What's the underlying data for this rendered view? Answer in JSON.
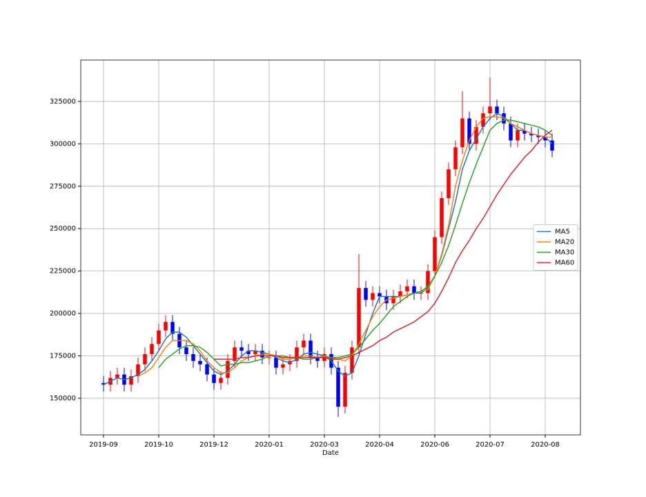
{
  "chart_data": {
    "type": "candlestick",
    "xlabel": "Date",
    "xlim": [
      -3.3,
      69.1
    ],
    "xticks": [
      {
        "value": 0,
        "label": "2019-09"
      },
      {
        "value": 8,
        "label": "2019-10"
      },
      {
        "value": 16,
        "label": "2019-12"
      },
      {
        "value": 24,
        "label": "2020-01"
      },
      {
        "value": 32,
        "label": "2020-03"
      },
      {
        "value": 40,
        "label": "2020-04"
      },
      {
        "value": 48,
        "label": "2020-06"
      },
      {
        "value": 56,
        "label": "2020-07"
      },
      {
        "value": 64,
        "label": "2020-08"
      }
    ],
    "ylim": [
      128400,
      349400
    ],
    "yticks": [
      150000,
      175000,
      200000,
      225000,
      250000,
      275000,
      300000,
      325000
    ],
    "grid": true,
    "legend": "center right",
    "up_color": "#ff0000",
    "down_color": "#0000ff",
    "open": [
      159000,
      158000,
      162000,
      164000,
      158000,
      163000,
      170000,
      176000,
      182000,
      190000,
      195000,
      188000,
      180000,
      176000,
      172000,
      170000,
      164000,
      159000,
      162000,
      172000,
      180000,
      178000,
      176000,
      178000,
      174000,
      174000,
      168000,
      170000,
      172000,
      180000,
      184000,
      174000,
      172000,
      176000,
      168000,
      145000,
      165000,
      180000,
      215000,
      208000,
      212000,
      210000,
      206000,
      210000,
      213000,
      216000,
      212000,
      212000,
      225000,
      245000,
      268000,
      285000,
      298000,
      315000,
      300000,
      310000,
      318000,
      322000,
      318000,
      312000,
      302000,
      308000,
      306000,
      305000,
      304000,
      302000
    ],
    "high": [
      163000,
      166000,
      168000,
      168000,
      167000,
      174000,
      180000,
      186000,
      194000,
      199000,
      199000,
      192000,
      184000,
      180000,
      176000,
      174000,
      168000,
      166000,
      176000,
      184000,
      184000,
      182000,
      182000,
      182000,
      178000,
      178000,
      174000,
      176000,
      184000,
      188000,
      188000,
      178000,
      180000,
      180000,
      172000,
      169000,
      184000,
      235000,
      219000,
      216000,
      216000,
      214000,
      214000,
      217000,
      220000,
      220000,
      216000,
      229000,
      249000,
      272000,
      289000,
      302000,
      331000,
      319000,
      314000,
      322000,
      339000,
      326000,
      322000,
      316000,
      312000,
      312000,
      310000,
      309000,
      308000,
      306000
    ],
    "low": [
      154000,
      154000,
      158000,
      154000,
      154000,
      159000,
      166000,
      172000,
      178000,
      186000,
      184000,
      176000,
      172000,
      168000,
      166000,
      160000,
      155000,
      155000,
      158000,
      168000,
      174000,
      172000,
      172000,
      170000,
      170000,
      164000,
      164000,
      166000,
      168000,
      176000,
      170000,
      168000,
      168000,
      164000,
      139000,
      141000,
      161000,
      176000,
      204000,
      204000,
      206000,
      202000,
      202000,
      206000,
      209000,
      208000,
      208000,
      208000,
      221000,
      241000,
      264000,
      281000,
      294000,
      296000,
      296000,
      306000,
      314000,
      314000,
      308000,
      298000,
      298000,
      302000,
      301000,
      300000,
      298000,
      292000
    ],
    "close": [
      158000,
      162000,
      164000,
      158000,
      163000,
      170000,
      176000,
      182000,
      190000,
      195000,
      188000,
      180000,
      176000,
      172000,
      170000,
      164000,
      159000,
      162000,
      172000,
      180000,
      178000,
      176000,
      178000,
      174000,
      174000,
      168000,
      170000,
      172000,
      180000,
      184000,
      174000,
      172000,
      176000,
      168000,
      145000,
      165000,
      180000,
      215000,
      208000,
      212000,
      210000,
      206000,
      210000,
      213000,
      216000,
      212000,
      212000,
      225000,
      245000,
      268000,
      285000,
      298000,
      315000,
      300000,
      310000,
      318000,
      322000,
      318000,
      312000,
      302000,
      308000,
      306000,
      305000,
      304000,
      302000,
      296000
    ],
    "series": [
      {
        "name": "MA5",
        "color": "#1f77b4",
        "values": [
          158000,
          160000,
          162000,
          161000,
          162000,
          164000,
          167000,
          172000,
          178000,
          185000,
          189000,
          189000,
          186000,
          181000,
          176000,
          171000,
          166000,
          164000,
          166000,
          170000,
          175000,
          178000,
          178000,
          177000,
          176000,
          174000,
          172000,
          171000,
          173000,
          176000,
          177000,
          176000,
          175000,
          172000,
          166000,
          163000,
          165000,
          175000,
          188000,
          200000,
          210000,
          210000,
          210000,
          210000,
          211000,
          212000,
          212000,
          215000,
          222000,
          234000,
          250000,
          266000,
          285000,
          296000,
          303000,
          310000,
          315000,
          318000,
          316000,
          312000,
          308000,
          308000,
          306000,
          305000,
          304000,
          300000
        ]
      },
      {
        "name": "MA20",
        "color": "#ff7f0e",
        "values": [
          null,
          null,
          null,
          null,
          null,
          163000,
          165000,
          168000,
          174000,
          180000,
          184000,
          184000,
          184000,
          182000,
          178000,
          172000,
          168000,
          165000,
          165000,
          168000,
          172000,
          174000,
          175000,
          176000,
          176000,
          175000,
          173000,
          173000,
          174000,
          175000,
          175000,
          174000,
          175000,
          174000,
          173000,
          172000,
          175000,
          182000,
          190000,
          198000,
          204000,
          208000,
          209000,
          210000,
          211000,
          212000,
          213000,
          214000,
          222000,
          235000,
          252000,
          275000,
          290000,
          302000,
          310000,
          315000,
          316000,
          316000,
          315000,
          312000,
          310000,
          308000,
          306000,
          305000,
          304000,
          304000
        ]
      },
      {
        "name": "MA30",
        "color": "#2ca02c",
        "values": [
          null,
          null,
          null,
          null,
          null,
          null,
          null,
          null,
          168000,
          173000,
          176000,
          179000,
          181000,
          181000,
          180000,
          177000,
          173000,
          169000,
          170000,
          170000,
          171000,
          171000,
          172000,
          173000,
          175000,
          175000,
          175000,
          174000,
          174000,
          173000,
          173000,
          174000,
          174000,
          174000,
          174000,
          175000,
          176000,
          180000,
          185000,
          190000,
          194000,
          199000,
          204000,
          207000,
          210000,
          212000,
          213000,
          216000,
          222000,
          230000,
          240000,
          252000,
          265000,
          277000,
          288000,
          298000,
          308000,
          312000,
          314000,
          314000,
          313000,
          312000,
          311000,
          310000,
          308000,
          305000
        ]
      },
      {
        "name": "MA60",
        "color": "#d62728",
        "values": [
          null,
          null,
          null,
          null,
          null,
          null,
          null,
          null,
          null,
          null,
          null,
          null,
          null,
          null,
          null,
          null,
          173000,
          173000,
          173000,
          173000,
          174000,
          174000,
          175000,
          175000,
          175000,
          175000,
          174000,
          174000,
          174000,
          174000,
          174000,
          174000,
          174000,
          173000,
          173000,
          174000,
          175000,
          177000,
          179000,
          181000,
          184000,
          186000,
          189000,
          191000,
          193000,
          195000,
          198000,
          201000,
          206000,
          213000,
          221000,
          230000,
          237000,
          243000,
          250000,
          256000,
          263000,
          270000,
          276000,
          282000,
          287000,
          292000,
          296000,
          301000,
          305000,
          308000
        ]
      }
    ]
  }
}
